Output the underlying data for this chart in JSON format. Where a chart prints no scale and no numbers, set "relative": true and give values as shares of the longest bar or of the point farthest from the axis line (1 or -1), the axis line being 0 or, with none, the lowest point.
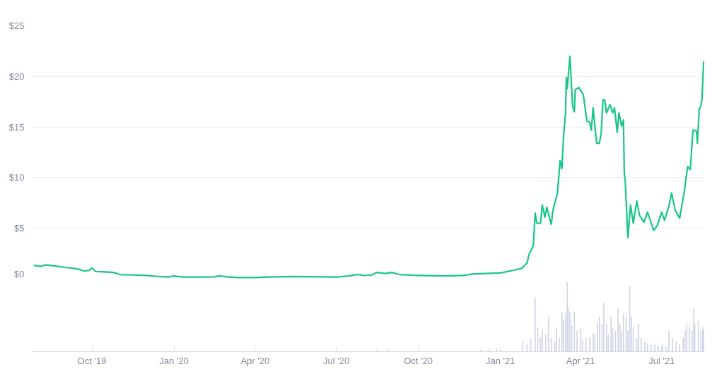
{
  "chart_data": [
    {
      "type": "line",
      "x": [
        "2019-07-28",
        "2019-08-05",
        "2019-08-10",
        "2019-08-20",
        "2019-09-01",
        "2019-09-15",
        "2019-09-22",
        "2019-09-28",
        "2019-10-01",
        "2019-10-05",
        "2019-10-15",
        "2019-10-25",
        "2019-11-01",
        "2019-11-15",
        "2019-12-01",
        "2019-12-15",
        "2019-12-25",
        "2020-01-01",
        "2020-01-10",
        "2020-02-01",
        "2020-02-15",
        "2020-02-20",
        "2020-03-01",
        "2020-03-12",
        "2020-04-01",
        "2020-04-15",
        "2020-05-15",
        "2020-07-01",
        "2020-07-15",
        "2020-07-25",
        "2020-08-01",
        "2020-08-10",
        "2020-08-15",
        "2020-08-25",
        "2020-09-01",
        "2020-09-10",
        "2020-10-01",
        "2020-11-01",
        "2020-11-20",
        "2020-12-01",
        "2020-12-15",
        "2021-01-01",
        "2021-01-15",
        "2021-01-25",
        "2021-01-31",
        "2021-02-02",
        "2021-02-07",
        "2021-02-09",
        "2021-02-11",
        "2021-02-15",
        "2021-02-17",
        "2021-02-20",
        "2021-02-22",
        "2021-02-27",
        "2021-03-01",
        "2021-03-06",
        "2021-03-09",
        "2021-03-11",
        "2021-03-13",
        "2021-03-15",
        "2021-03-16",
        "2021-03-17",
        "2021-03-20",
        "2021-03-23",
        "2021-03-25",
        "2021-03-26",
        "2021-03-30",
        "2021-04-04",
        "2021-04-08",
        "2021-04-11",
        "2021-04-13",
        "2021-04-15",
        "2021-04-19",
        "2021-04-22",
        "2021-04-24",
        "2021-04-26",
        "2021-04-28",
        "2021-04-30",
        "2021-05-04",
        "2021-05-07",
        "2021-05-09",
        "2021-05-12",
        "2021-05-14",
        "2021-05-17",
        "2021-05-19",
        "2021-05-20",
        "2021-05-21",
        "2021-05-24",
        "2021-05-27",
        "2021-05-30",
        "2021-06-03",
        "2021-06-06",
        "2021-06-11",
        "2021-06-15",
        "2021-06-22",
        "2021-06-26",
        "2021-07-01",
        "2021-07-04",
        "2021-07-09",
        "2021-07-12",
        "2021-07-16",
        "2021-07-21",
        "2021-07-26",
        "2021-07-30",
        "2021-08-02",
        "2021-08-05",
        "2021-08-09",
        "2021-08-10",
        "2021-08-12",
        "2021-08-14",
        "2021-08-15",
        "2021-08-17"
      ],
      "series": [
        {
          "color": "#16c784",
          "values": [
            1.35,
            1.25,
            1.4,
            1.3,
            1.15,
            1.0,
            0.8,
            0.85,
            1.1,
            0.75,
            0.7,
            0.65,
            0.45,
            0.4,
            0.35,
            0.25,
            0.2,
            0.3,
            0.2,
            0.2,
            0.22,
            0.3,
            0.22,
            0.15,
            0.15,
            0.2,
            0.25,
            0.2,
            0.3,
            0.45,
            0.35,
            0.4,
            0.65,
            0.55,
            0.65,
            0.45,
            0.35,
            0.3,
            0.35,
            0.5,
            0.55,
            0.6,
            0.85,
            1.05,
            1.6,
            2.4,
            3.3,
            6.5,
            5.5,
            5.5,
            7.3,
            6.1,
            7.1,
            5.4,
            6.8,
            8.5,
            11.7,
            10.9,
            14.3,
            16.3,
            19.9,
            18.8,
            22.0,
            17.1,
            16.5,
            18.7,
            18.9,
            18.2,
            15.6,
            15.5,
            14.7,
            16.9,
            13.4,
            13.4,
            14.3,
            17.7,
            17.7,
            16.4,
            17.2,
            16.4,
            16.9,
            14.5,
            16.4,
            15.1,
            15.7,
            10.4,
            9.7,
            4.1,
            7.3,
            5.5,
            7.7,
            6.3,
            5.6,
            6.6,
            4.8,
            5.3,
            6.6,
            5.8,
            7.2,
            8.5,
            6.8,
            6.0,
            8.5,
            11.1,
            10.8,
            14.7,
            14.6,
            13.4,
            16.8,
            17.1,
            17.7,
            21.5
          ]
        }
      ],
      "xlim": [
        "2019-07-26",
        "2021-08-18"
      ],
      "ylim": [
        0,
        25
      ],
      "yticks": [
        {
          "value": 0,
          "label": "$0"
        },
        {
          "value": 5,
          "label": "$5"
        },
        {
          "value": 10,
          "label": "$10"
        },
        {
          "value": 15,
          "label": "$15"
        },
        {
          "value": 20,
          "label": "$20"
        },
        {
          "value": 25,
          "label": "$25"
        }
      ],
      "grid": "y",
      "tick_labels": "y",
      "line_style": "solid",
      "marker": "none"
    },
    {
      "type": "bar",
      "relative": true,
      "x": [
        "2020-08-16",
        "2020-08-28",
        "2020-12-10",
        "2020-12-20",
        "2020-12-28",
        "2021-01-26",
        "2021-01-31",
        "2021-02-04",
        "2021-02-09",
        "2021-02-12",
        "2021-02-15",
        "2021-02-17",
        "2021-02-21",
        "2021-02-24",
        "2021-02-27",
        "2021-03-03",
        "2021-03-05",
        "2021-03-08",
        "2021-03-11",
        "2021-03-13",
        "2021-03-15",
        "2021-03-17",
        "2021-03-18",
        "2021-03-20",
        "2021-03-22",
        "2021-03-25",
        "2021-03-28",
        "2021-04-01",
        "2021-04-03",
        "2021-04-07",
        "2021-04-11",
        "2021-04-15",
        "2021-04-17",
        "2021-04-20",
        "2021-04-22",
        "2021-04-25",
        "2021-04-27",
        "2021-04-30",
        "2021-05-02",
        "2021-05-05",
        "2021-05-07",
        "2021-05-10",
        "2021-05-13",
        "2021-05-15",
        "2021-05-17",
        "2021-05-19",
        "2021-05-22",
        "2021-05-24",
        "2021-05-26",
        "2021-05-28",
        "2021-05-30",
        "2021-06-03",
        "2021-06-05",
        "2021-06-08",
        "2021-06-12",
        "2021-06-15",
        "2021-06-19",
        "2021-06-23",
        "2021-06-27",
        "2021-07-02",
        "2021-07-06",
        "2021-07-09",
        "2021-07-13",
        "2021-07-17",
        "2021-07-21",
        "2021-07-25",
        "2021-07-27",
        "2021-07-29",
        "2021-08-01",
        "2021-08-04",
        "2021-08-06",
        "2021-08-07",
        "2021-08-11",
        "2021-08-14",
        "2021-08-16",
        "2021-08-17"
      ],
      "series": [
        {
          "color": "#d1d5e3",
          "values": [
            0.04,
            0.04,
            0.03,
            0.04,
            0.04,
            0.15,
            0.1,
            0.2,
            0.78,
            0.35,
            0.2,
            0.32,
            0.25,
            0.5,
            0.2,
            0.15,
            0.35,
            0.2,
            0.57,
            0.45,
            0.55,
            1.0,
            0.62,
            0.57,
            0.38,
            0.57,
            0.3,
            0.33,
            0.17,
            0.2,
            0.2,
            0.27,
            0.25,
            0.42,
            0.5,
            0.4,
            0.7,
            0.4,
            0.25,
            0.5,
            0.35,
            0.3,
            0.62,
            0.4,
            0.3,
            0.55,
            0.5,
            0.3,
            0.94,
            0.5,
            0.35,
            0.2,
            0.4,
            0.2,
            0.15,
            0.12,
            0.1,
            0.1,
            0.08,
            0.12,
            0.07,
            0.3,
            0.2,
            0.15,
            0.1,
            0.2,
            0.3,
            0.38,
            0.35,
            0.3,
            0.62,
            0.4,
            0.45,
            0.3,
            0.35,
            0.3
          ]
        }
      ],
      "xlim": [
        "2019-07-26",
        "2021-08-18"
      ],
      "xticks": [
        {
          "value": "2019-10-01",
          "label": "Oct '19"
        },
        {
          "value": "2020-01-01",
          "label": "Jan '20"
        },
        {
          "value": "2020-04-01",
          "label": "Apr '20"
        },
        {
          "value": "2020-07-01",
          "label": "Jul '20"
        },
        {
          "value": "2020-10-01",
          "label": "Oct '20"
        },
        {
          "value": "2021-01-01",
          "label": "Jan '21"
        },
        {
          "value": "2021-04-01",
          "label": "Apr '21"
        },
        {
          "value": "2021-07-01",
          "label": "Jul '21"
        }
      ],
      "tick_labels": "x",
      "grid": false
    }
  ]
}
